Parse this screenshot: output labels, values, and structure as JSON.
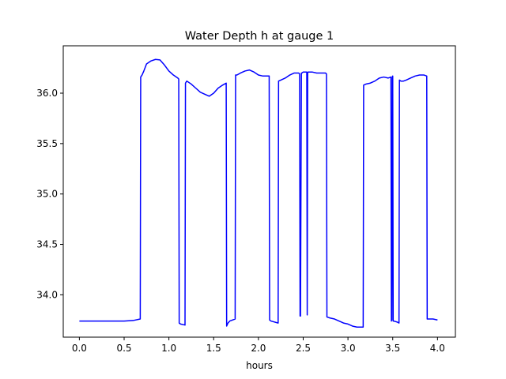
{
  "chart_data": {
    "type": "line",
    "title": "Water Depth h at gauge 1",
    "xlabel": "hours",
    "ylabel": "",
    "xlim": [
      -0.18,
      4.2
    ],
    "ylim": [
      33.58,
      36.47
    ],
    "xticks": [
      0.0,
      0.5,
      1.0,
      1.5,
      2.0,
      2.5,
      3.0,
      3.5,
      4.0
    ],
    "xtick_labels": [
      "0.0",
      "0.5",
      "1.0",
      "1.5",
      "2.0",
      "2.5",
      "3.0",
      "3.5",
      "4.0"
    ],
    "yticks": [
      34.0,
      34.5,
      35.0,
      35.5,
      36.0
    ],
    "ytick_labels": [
      "34.0",
      "34.5",
      "35.0",
      "35.5",
      "36.0"
    ],
    "grid": false,
    "legend": "none",
    "series": [
      {
        "name": "",
        "color": "#0000ff",
        "x": [
          0.0,
          0.5,
          0.6,
          0.68,
          0.685,
          0.7,
          0.72,
          0.75,
          0.8,
          0.85,
          0.9,
          0.95,
          1.0,
          1.05,
          1.1,
          1.11,
          1.115,
          1.13,
          1.18,
          1.185,
          1.2,
          1.25,
          1.3,
          1.35,
          1.4,
          1.45,
          1.5,
          1.55,
          1.6,
          1.64,
          1.645,
          1.66,
          1.68,
          1.74,
          1.745,
          1.76,
          1.8,
          1.85,
          1.9,
          1.95,
          2.0,
          2.05,
          2.1,
          2.12,
          2.125,
          2.14,
          2.22,
          2.225,
          2.25,
          2.3,
          2.35,
          2.4,
          2.45,
          2.46,
          2.465,
          2.47,
          2.48,
          2.485,
          2.5,
          2.54,
          2.545,
          2.55,
          2.555,
          2.6,
          2.65,
          2.7,
          2.75,
          2.76,
          2.765,
          2.8,
          2.85,
          2.9,
          2.95,
          3.0,
          3.05,
          3.1,
          3.15,
          3.17,
          3.175,
          3.2,
          3.25,
          3.3,
          3.35,
          3.4,
          3.45,
          3.48,
          3.485,
          3.49,
          3.495,
          3.5,
          3.505,
          3.51,
          3.55,
          3.57,
          3.575,
          3.59,
          3.62,
          3.65,
          3.7,
          3.75,
          3.8,
          3.85,
          3.88,
          3.885,
          3.9,
          3.95,
          4.0
        ],
        "y": [
          33.74,
          33.74,
          33.745,
          33.76,
          36.16,
          36.18,
          36.22,
          36.29,
          36.32,
          36.335,
          36.33,
          36.28,
          36.22,
          36.18,
          36.15,
          36.14,
          33.72,
          33.71,
          33.7,
          36.1,
          36.12,
          36.09,
          36.05,
          36.01,
          35.99,
          35.97,
          36.0,
          36.05,
          36.08,
          36.1,
          33.69,
          33.72,
          33.74,
          33.76,
          36.18,
          36.18,
          36.2,
          36.22,
          36.23,
          36.21,
          36.18,
          36.17,
          36.17,
          36.17,
          33.75,
          33.74,
          33.72,
          36.12,
          36.13,
          36.15,
          36.18,
          36.2,
          36.2,
          36.19,
          33.79,
          33.79,
          36.2,
          36.2,
          36.21,
          36.21,
          33.8,
          36.2,
          36.21,
          36.21,
          36.2,
          36.2,
          36.2,
          36.19,
          33.78,
          33.77,
          33.76,
          33.74,
          33.72,
          33.71,
          33.69,
          33.68,
          33.68,
          33.68,
          36.08,
          36.09,
          36.1,
          36.12,
          36.15,
          36.16,
          36.15,
          36.16,
          33.74,
          33.75,
          36.16,
          36.17,
          33.74,
          33.74,
          33.73,
          33.72,
          36.13,
          36.12,
          36.12,
          36.13,
          36.15,
          36.17,
          36.18,
          36.18,
          36.17,
          33.76,
          33.76,
          33.76,
          33.75
        ]
      }
    ]
  }
}
